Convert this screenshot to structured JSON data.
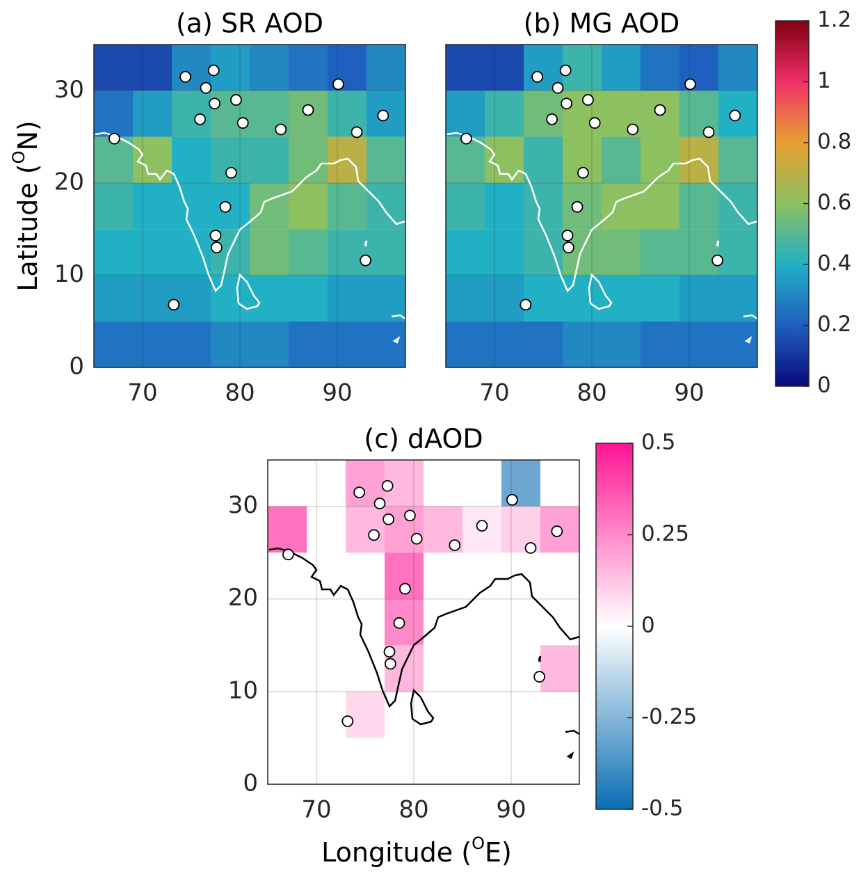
{
  "chart_data": [
    {
      "type": "heatmap",
      "title": "(a) SR AOD",
      "ylabel": [
        "Latitude (",
        "O",
        "N)"
      ],
      "xlim": [
        65,
        97
      ],
      "ylim": [
        0,
        35
      ],
      "xticks": [
        70,
        80,
        90
      ],
      "yticks": [
        0,
        10,
        20,
        30
      ],
      "show_ytick_labels": true,
      "grid": true,
      "lon_bins": [
        65,
        69,
        73,
        77,
        81,
        85,
        89,
        93,
        97
      ],
      "lat_bins": [
        0,
        5,
        10,
        15,
        20,
        25,
        30,
        35
      ],
      "z": [
        [
          0.25,
          0.25,
          0.25,
          0.3,
          0.3,
          0.25,
          0.25,
          0.25
        ],
        [
          0.35,
          0.35,
          0.35,
          0.4,
          0.4,
          0.4,
          0.35,
          0.35
        ],
        [
          0.4,
          0.4,
          0.4,
          0.45,
          0.55,
          0.5,
          0.45,
          0.45
        ],
        [
          0.45,
          0.4,
          0.4,
          0.4,
          0.55,
          0.6,
          0.5,
          0.45
        ],
        [
          0.5,
          0.6,
          0.4,
          0.45,
          0.45,
          0.55,
          0.7,
          0.5
        ],
        [
          0.25,
          0.35,
          0.45,
          0.5,
          0.5,
          0.55,
          0.45,
          0.35
        ],
        [
          0.15,
          0.15,
          0.3,
          0.35,
          0.3,
          0.25,
          0.2,
          0.3
        ]
      ],
      "clim": [
        0,
        1.2
      ],
      "colormap": [
        "#0a0a7a",
        "#1f5fbf",
        "#22b0c4",
        "#8cc060",
        "#e8a030",
        "#f0306a",
        "#800010"
      ],
      "colorbar": true,
      "cticks": [
        0,
        0.2,
        0.4,
        0.6,
        0.8,
        1,
        1.2
      ],
      "coast_color": "#ffffff",
      "stations": {
        "lon": [
          67.1,
          74.4,
          77.3,
          76.5,
          77.4,
          75.9,
          79.6,
          80.3,
          87.0,
          90.1,
          94.7,
          92.0,
          84.2,
          79.1,
          78.5,
          77.5,
          77.6,
          92.9,
          73.2
        ],
        "lat": [
          24.8,
          31.5,
          32.2,
          30.3,
          28.6,
          26.9,
          29.0,
          26.5,
          27.9,
          30.7,
          27.3,
          25.5,
          25.8,
          21.1,
          17.4,
          14.3,
          13.0,
          11.6,
          6.8
        ]
      }
    },
    {
      "type": "heatmap",
      "title": "(b) MG AOD",
      "xlim": [
        65,
        97
      ],
      "ylim": [
        0,
        35
      ],
      "xticks": [
        70,
        80,
        90
      ],
      "yticks": [
        0,
        10,
        20,
        30
      ],
      "show_ytick_labels": false,
      "grid": true,
      "lon_bins": [
        65,
        69,
        73,
        77,
        81,
        85,
        89,
        93,
        97
      ],
      "lat_bins": [
        0,
        5,
        10,
        15,
        20,
        25,
        30,
        35
      ],
      "z": [
        [
          0.25,
          0.25,
          0.25,
          0.3,
          0.3,
          0.25,
          0.25,
          0.25
        ],
        [
          0.35,
          0.35,
          0.4,
          0.4,
          0.4,
          0.4,
          0.35,
          0.35
        ],
        [
          0.4,
          0.4,
          0.45,
          0.55,
          0.55,
          0.5,
          0.5,
          0.45
        ],
        [
          0.45,
          0.4,
          0.45,
          0.55,
          0.6,
          0.6,
          0.5,
          0.45
        ],
        [
          0.5,
          0.6,
          0.45,
          0.6,
          0.5,
          0.6,
          0.7,
          0.5
        ],
        [
          0.35,
          0.45,
          0.55,
          0.6,
          0.6,
          0.6,
          0.5,
          0.4
        ],
        [
          0.15,
          0.15,
          0.35,
          0.45,
          0.35,
          0.25,
          0.2,
          0.3
        ]
      ],
      "clim": [
        0,
        1.2
      ],
      "colormap": [
        "#0a0a7a",
        "#1f5fbf",
        "#22b0c4",
        "#8cc060",
        "#e8a030",
        "#f0306a",
        "#800010"
      ],
      "colorbar": false,
      "coast_color": "#ffffff",
      "stations": {
        "lon": [
          67.1,
          74.4,
          77.3,
          76.5,
          77.4,
          75.9,
          79.6,
          80.3,
          87.0,
          90.1,
          94.7,
          92.0,
          84.2,
          79.1,
          78.5,
          77.5,
          77.6,
          92.9,
          73.2
        ],
        "lat": [
          24.8,
          31.5,
          32.2,
          30.3,
          28.6,
          26.9,
          29.0,
          26.5,
          27.9,
          30.7,
          27.3,
          25.5,
          25.8,
          21.1,
          17.4,
          14.3,
          13.0,
          11.6,
          6.8
        ]
      }
    },
    {
      "type": "heatmap",
      "title": "(c) dAOD",
      "xlabel": [
        "Longitude (",
        "O",
        "E)"
      ],
      "xlim": [
        65,
        97
      ],
      "ylim": [
        0,
        35
      ],
      "xticks": [
        70,
        80,
        90
      ],
      "yticks": [
        0,
        10,
        20,
        30
      ],
      "show_ytick_labels": true,
      "grid": true,
      "lon_bins": [
        65,
        69,
        73,
        77,
        81,
        85,
        89,
        93,
        97
      ],
      "lat_bins": [
        0,
        5,
        10,
        15,
        20,
        25,
        30,
        35
      ],
      "z": [
        [
          null,
          null,
          null,
          null,
          null,
          null,
          null,
          null
        ],
        [
          null,
          null,
          0.08,
          null,
          null,
          null,
          null,
          null
        ],
        [
          null,
          null,
          null,
          0.15,
          null,
          null,
          null,
          0.15
        ],
        [
          null,
          null,
          null,
          0.25,
          null,
          null,
          null,
          null
        ],
        [
          null,
          null,
          null,
          0.3,
          null,
          null,
          null,
          null
        ],
        [
          0.3,
          null,
          0.15,
          0.2,
          0.15,
          0.05,
          0.1,
          0.2
        ],
        [
          null,
          null,
          0.2,
          0.15,
          null,
          null,
          -0.3,
          null
        ]
      ],
      "clim": [
        -0.5,
        0.5
      ],
      "colormap": [
        "#0a6eb4",
        "#ffffff",
        "#ff1493"
      ],
      "colorbar": true,
      "cticks": [
        -0.5,
        -0.25,
        0,
        0.25,
        0.5
      ],
      "coast_color": "#000000",
      "stations": {
        "lon": [
          67.1,
          74.4,
          77.3,
          76.5,
          77.4,
          75.9,
          79.6,
          80.3,
          87.0,
          90.1,
          94.7,
          92.0,
          84.2,
          79.1,
          78.5,
          77.5,
          77.6,
          92.9,
          73.2
        ],
        "lat": [
          24.8,
          31.5,
          32.2,
          30.3,
          28.6,
          26.9,
          29.0,
          26.5,
          27.9,
          30.7,
          27.3,
          25.5,
          25.8,
          21.1,
          17.4,
          14.3,
          13.0,
          11.6,
          6.8
        ]
      }
    }
  ]
}
